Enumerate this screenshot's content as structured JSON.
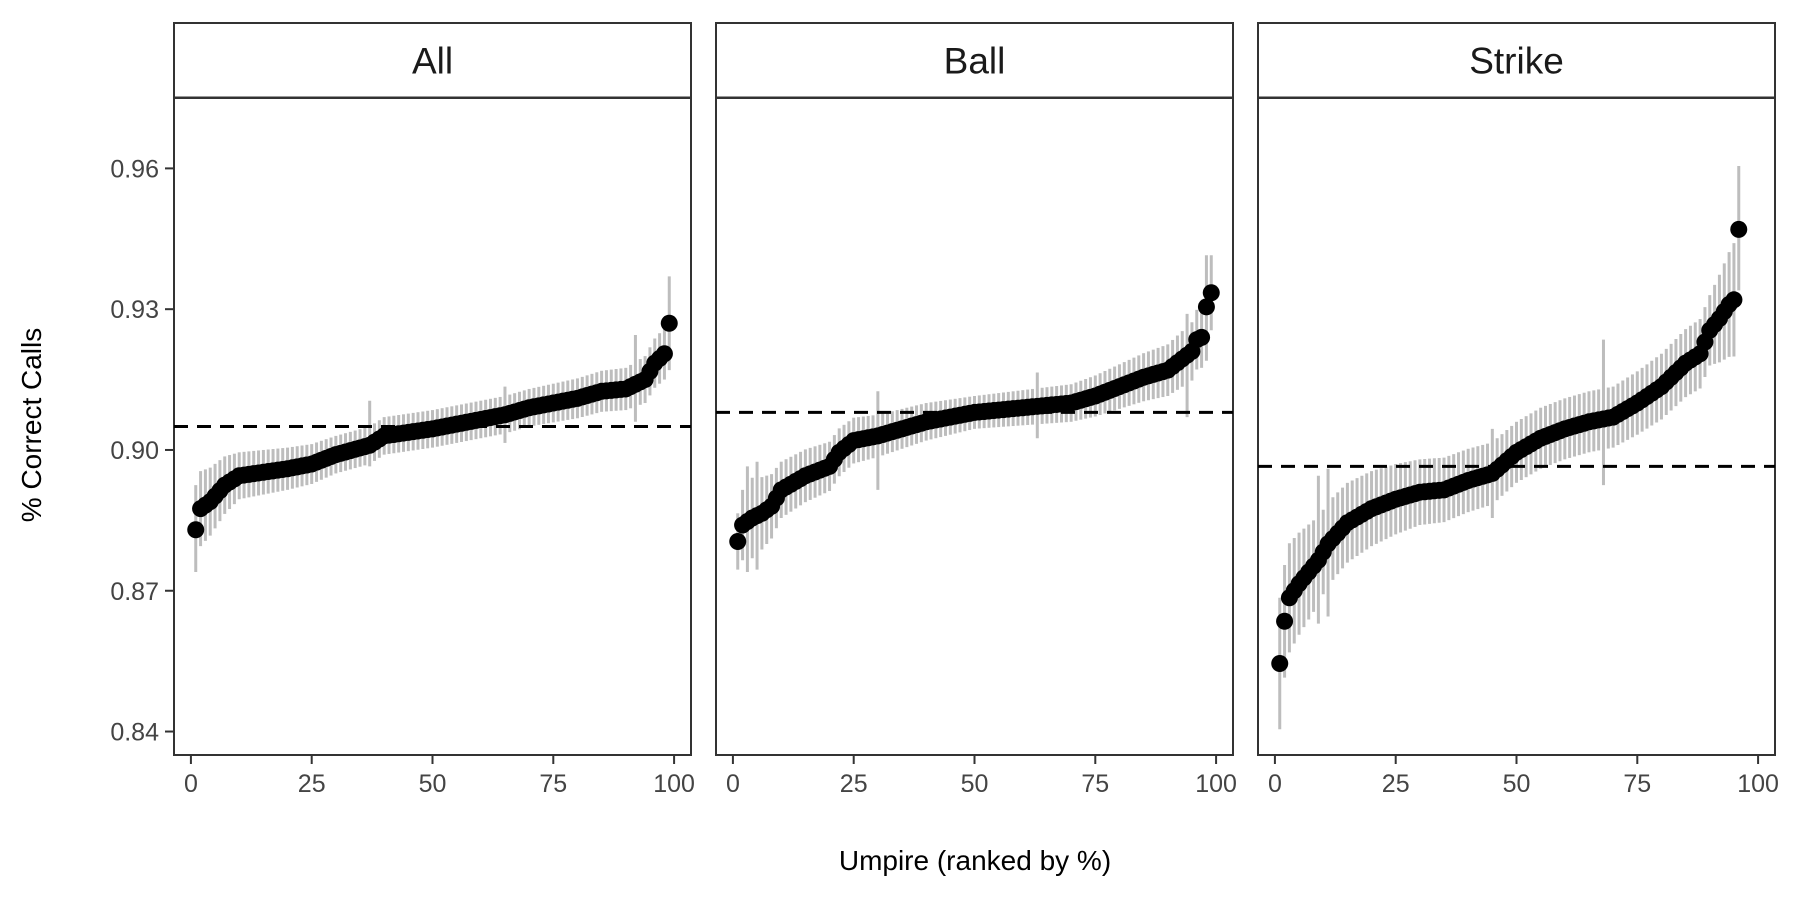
{
  "chart_data": {
    "type": "scatter",
    "xlabel": "Umpire (ranked by %)",
    "ylabel": "% Correct Calls",
    "ylim": [
      0.835,
      0.975
    ],
    "y_ticks": [
      0.84,
      0.87,
      0.9,
      0.93,
      0.96
    ],
    "y_tick_labels": [
      "0.84",
      "0.87",
      "0.90",
      "0.93",
      "0.96"
    ],
    "x_ticks": [
      0,
      25,
      50,
      75,
      100
    ],
    "x_tick_labels": [
      "0",
      "25",
      "50",
      "75",
      "100"
    ],
    "xlim": [
      -3.5,
      103.5
    ],
    "grid": false,
    "colors": {
      "points": "#000000",
      "error_bars": "#bdbdbd",
      "reference_line": "#000000"
    },
    "panels": [
      {
        "label": "All",
        "n": 99,
        "reference": 0.905,
        "anchors": [
          [
            1,
            0.883
          ],
          [
            2,
            0.8875
          ],
          [
            4,
            0.889
          ],
          [
            7,
            0.8925
          ],
          [
            10,
            0.8945
          ],
          [
            20,
            0.896
          ],
          [
            25,
            0.897
          ],
          [
            30,
            0.899
          ],
          [
            37,
            0.901
          ],
          [
            40,
            0.903
          ],
          [
            50,
            0.9045
          ],
          [
            60,
            0.9065
          ],
          [
            65,
            0.9075
          ],
          [
            70,
            0.909
          ],
          [
            80,
            0.911
          ],
          [
            85,
            0.9125
          ],
          [
            90,
            0.913
          ],
          [
            94,
            0.915
          ],
          [
            96,
            0.9185
          ],
          [
            97,
            0.9195
          ],
          [
            98,
            0.9205
          ],
          [
            99,
            0.927
          ]
        ],
        "err_anchors": [
          [
            1,
            0.0095
          ],
          [
            2,
            0.008
          ],
          [
            10,
            0.005
          ],
          [
            30,
            0.004
          ],
          [
            50,
            0.004
          ],
          [
            70,
            0.004
          ],
          [
            90,
            0.0045
          ],
          [
            98,
            0.0055
          ],
          [
            99,
            0.0095
          ]
        ],
        "spikes": [
          [
            1,
            0.874,
            0.8925
          ],
          [
            37,
            0.8965,
            0.9105
          ],
          [
            65,
            0.9015,
            0.9135
          ],
          [
            92,
            0.906,
            0.9245
          ],
          [
            99,
            0.917,
            0.937
          ]
        ]
      },
      {
        "label": "Ball",
        "n": 99,
        "reference": 0.908,
        "anchors": [
          [
            1,
            0.8805
          ],
          [
            2,
            0.884
          ],
          [
            4,
            0.8855
          ],
          [
            6,
            0.8865
          ],
          [
            8,
            0.888
          ],
          [
            10,
            0.8915
          ],
          [
            15,
            0.8945
          ],
          [
            20,
            0.8965
          ],
          [
            22,
            0.8995
          ],
          [
            25,
            0.902
          ],
          [
            30,
            0.903
          ],
          [
            40,
            0.906
          ],
          [
            50,
            0.908
          ],
          [
            60,
            0.909
          ],
          [
            70,
            0.91
          ],
          [
            75,
            0.9115
          ],
          [
            80,
            0.9135
          ],
          [
            85,
            0.9155
          ],
          [
            90,
            0.917
          ],
          [
            95,
            0.921
          ],
          [
            96,
            0.9235
          ],
          [
            97,
            0.924
          ],
          [
            98,
            0.9305
          ],
          [
            99,
            0.9335
          ]
        ],
        "err_anchors": [
          [
            1,
            0.006
          ],
          [
            3,
            0.009
          ],
          [
            10,
            0.006
          ],
          [
            30,
            0.0045
          ],
          [
            50,
            0.0035
          ],
          [
            70,
            0.004
          ],
          [
            90,
            0.0055
          ],
          [
            97,
            0.0065
          ],
          [
            98,
            0.009
          ],
          [
            99,
            0.008
          ]
        ],
        "spikes": [
          [
            3,
            0.874,
            0.8965
          ],
          [
            5,
            0.8745,
            0.8975
          ],
          [
            30,
            0.8915,
            0.9125
          ],
          [
            63,
            0.9025,
            0.9165
          ],
          [
            94,
            0.907,
            0.929
          ],
          [
            98,
            0.919,
            0.9415
          ]
        ]
      },
      {
        "label": "Strike",
        "n": 96,
        "reference": 0.8965,
        "anchors": [
          [
            1,
            0.8545
          ],
          [
            2,
            0.8635
          ],
          [
            3,
            0.8685
          ],
          [
            5,
            0.8715
          ],
          [
            7,
            0.874
          ],
          [
            9,
            0.8765
          ],
          [
            11,
            0.88
          ],
          [
            15,
            0.8845
          ],
          [
            20,
            0.8875
          ],
          [
            25,
            0.8895
          ],
          [
            30,
            0.891
          ],
          [
            35,
            0.8915
          ],
          [
            40,
            0.8935
          ],
          [
            45,
            0.895
          ],
          [
            50,
            0.8995
          ],
          [
            55,
            0.9025
          ],
          [
            60,
            0.9045
          ],
          [
            65,
            0.906
          ],
          [
            70,
            0.907
          ],
          [
            75,
            0.91
          ],
          [
            80,
            0.9135
          ],
          [
            85,
            0.9185
          ],
          [
            88,
            0.9205
          ],
          [
            90,
            0.9255
          ],
          [
            92,
            0.928
          ],
          [
            94,
            0.931
          ],
          [
            95,
            0.932
          ],
          [
            96,
            0.947
          ]
        ],
        "err_anchors": [
          [
            1,
            0.014
          ],
          [
            2,
            0.012
          ],
          [
            10,
            0.009
          ],
          [
            30,
            0.007
          ],
          [
            50,
            0.0065
          ],
          [
            70,
            0.0065
          ],
          [
            90,
            0.0075
          ],
          [
            96,
            0.013
          ]
        ],
        "spikes": [
          [
            1,
            0.8405,
            0.8685
          ],
          [
            9,
            0.863,
            0.8945
          ],
          [
            11,
            0.8645,
            0.896
          ],
          [
            45,
            0.8855,
            0.9045
          ],
          [
            68,
            0.8925,
            0.9235
          ],
          [
            96,
            0.934,
            0.9605
          ]
        ]
      }
    ]
  }
}
